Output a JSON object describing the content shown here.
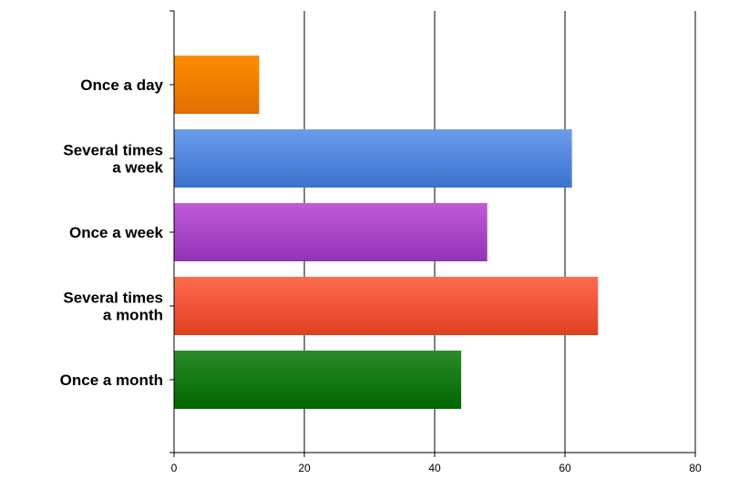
{
  "chart_data": {
    "type": "bar",
    "orientation": "horizontal",
    "categories": [
      [
        "Once a day"
      ],
      [
        "Several times",
        "a week"
      ],
      [
        "Once a week"
      ],
      [
        "Several times",
        "a month"
      ],
      [
        "Once a month"
      ]
    ],
    "values": [
      13,
      61,
      48,
      65,
      44
    ],
    "colors": [
      [
        "#ff8c00",
        "#e07000"
      ],
      [
        "#6a9cec",
        "#3c72d0"
      ],
      [
        "#c25ad8",
        "#9033b5"
      ],
      [
        "#ff6a50",
        "#e04020"
      ],
      [
        "#2a8c2a",
        "#006600"
      ]
    ],
    "xlim": [
      0,
      80
    ],
    "xticks": [
      "0",
      "20",
      "40",
      "60",
      "80"
    ],
    "grid": true,
    "legend": "none"
  }
}
